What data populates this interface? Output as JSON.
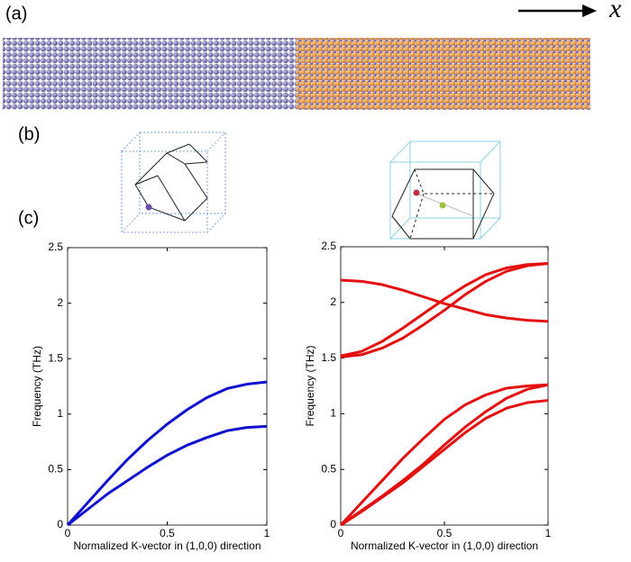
{
  "panel_labels": {
    "a": "(a)",
    "b": "(b)",
    "c": "(c)"
  },
  "direction_symbol": "x",
  "chart_data": [
    {
      "type": "line",
      "xlabel": "Normalized K-vector in (1,0,0) direction",
      "ylabel": "Frequency (THz)",
      "x": [
        0,
        0.1,
        0.2,
        0.3,
        0.4,
        0.5,
        0.6,
        0.7,
        0.8,
        0.9,
        1
      ],
      "xlim": [
        0,
        1
      ],
      "xticks": [
        0,
        0.5,
        1
      ],
      "ylim": [
        0,
        2.5
      ],
      "yticks": [
        0,
        0.5,
        1,
        1.5,
        2,
        2.5
      ],
      "series": [
        {
          "color": "#1010d0",
          "values": [
            0,
            0.2,
            0.4,
            0.59,
            0.76,
            0.91,
            1.04,
            1.15,
            1.23,
            1.27,
            1.29
          ]
        },
        {
          "color": "#1010d0",
          "values": [
            0,
            0.14,
            0.28,
            0.4,
            0.52,
            0.63,
            0.72,
            0.79,
            0.85,
            0.88,
            0.89
          ]
        }
      ]
    },
    {
      "type": "line",
      "xlabel": "Normalized K-vector in (1,0,0) direction",
      "ylabel": "Frequency (THz)",
      "x": [
        0,
        0.1,
        0.2,
        0.3,
        0.4,
        0.5,
        0.6,
        0.7,
        0.8,
        0.9,
        1
      ],
      "xlim": [
        0,
        1
      ],
      "xticks": [
        0,
        0.5,
        1
      ],
      "ylim": [
        0,
        2.5
      ],
      "yticks": [
        0,
        0.5,
        1,
        1.5,
        2,
        2.5
      ],
      "series": [
        {
          "color": "#e41010",
          "values": [
            0,
            0.2,
            0.4,
            0.6,
            0.78,
            0.95,
            1.08,
            1.17,
            1.23,
            1.25,
            1.26
          ]
        },
        {
          "color": "#e41010",
          "values": [
            0,
            0.13,
            0.26,
            0.4,
            0.55,
            0.72,
            0.88,
            1.02,
            1.14,
            1.22,
            1.26
          ]
        },
        {
          "color": "#e41010",
          "values": [
            0,
            0.12,
            0.25,
            0.38,
            0.53,
            0.68,
            0.83,
            0.96,
            1.05,
            1.1,
            1.12
          ]
        },
        {
          "color": "#e41010",
          "values": [
            2.2,
            2.19,
            2.16,
            2.11,
            2.05,
            1.99,
            1.94,
            1.89,
            1.86,
            1.84,
            1.83
          ]
        },
        {
          "color": "#e41010",
          "values": [
            1.52,
            1.56,
            1.65,
            1.77,
            1.9,
            2.03,
            2.15,
            2.25,
            2.31,
            2.34,
            2.35
          ]
        },
        {
          "color": "#e41010",
          "values": [
            1.51,
            1.53,
            1.59,
            1.68,
            1.8,
            1.93,
            2.07,
            2.19,
            2.28,
            2.33,
            2.35
          ]
        }
      ]
    }
  ]
}
